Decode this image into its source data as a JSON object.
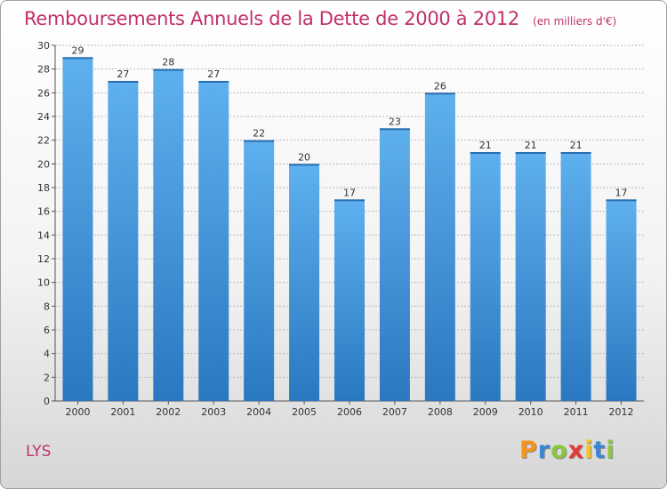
{
  "title": "Remboursements Annuels de la Dette de 2000 à 2012",
  "subtitle": "(en milliers d'€)",
  "commune": "LYS",
  "logo": {
    "text": "Proxiti",
    "letters": [
      {
        "char": "P",
        "color": "#f7941d"
      },
      {
        "char": "r",
        "color": "#3a86d6"
      },
      {
        "char": "o",
        "color": "#8dc63f"
      },
      {
        "char": "x",
        "color": "#e53935"
      },
      {
        "char": "i",
        "color": "#f7c21d"
      },
      {
        "char": "t",
        "color": "#3a86d6"
      },
      {
        "char": "i",
        "color": "#8dc63f"
      }
    ]
  },
  "colors": {
    "accent": "#c0306a",
    "bar_light": "#5fb0ee",
    "bar_dark": "#2a78c0",
    "grid": "#b8b8b8"
  },
  "chart_data": {
    "type": "bar",
    "title": "Remboursements Annuels de la Dette de 2000 à 2012",
    "subtitle": "(en milliers d'€)",
    "categories": [
      "2000",
      "2001",
      "2002",
      "2003",
      "2004",
      "2005",
      "2006",
      "2007",
      "2008",
      "2009",
      "2010",
      "2011",
      "2012"
    ],
    "values": [
      29,
      27,
      28,
      27,
      22,
      20,
      17,
      23,
      26,
      21,
      21,
      21,
      17
    ],
    "ylim": [
      0,
      30
    ],
    "yticks": [
      0,
      2,
      4,
      6,
      8,
      10,
      12,
      14,
      16,
      18,
      20,
      22,
      24,
      26,
      28,
      30
    ],
    "grid": true,
    "data_labels": true
  }
}
